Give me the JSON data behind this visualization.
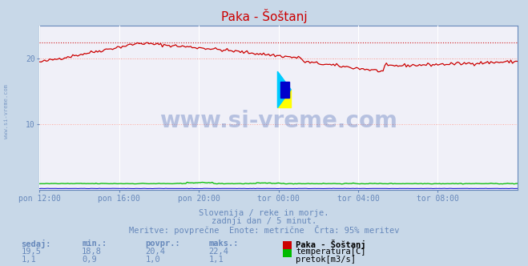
{
  "title": "Paka - Šoštanj",
  "bg_color": "#c8d8e8",
  "plot_bg_color": "#f0f0f8",
  "grid_color": "#ffffff",
  "x_labels": [
    "pon 12:00",
    "pon 16:00",
    "pon 20:00",
    "tor 00:00",
    "tor 04:00",
    "tor 08:00"
  ],
  "x_ticks_norm": [
    0.0,
    0.1667,
    0.3333,
    0.5,
    0.6667,
    0.8333
  ],
  "y_ticks": [
    10,
    20
  ],
  "y_min": 0,
  "y_max": 25,
  "temp_color": "#cc0000",
  "flow_color": "#00bb00",
  "height_color": "#0000cc",
  "temp_max_dotted": 22.4,
  "temp_mid_dotted": 20.0,
  "temp_low_dotted": 10.0,
  "subtitle1": "Slovenija / reke in morje.",
  "subtitle2": "zadnji dan / 5 minut.",
  "subtitle3": "Meritve: povprečne  Enote: metrične  Črta: 95% meritev",
  "legend_title": "Paka - Šoštanj",
  "stats_headers": [
    "sedaj:",
    "min.:",
    "povpr.:",
    "maks.:"
  ],
  "temp_stats": [
    "19,5",
    "18,8",
    "20,4",
    "22,4"
  ],
  "flow_stats": [
    "1,1",
    "0,9",
    "1,0",
    "1,1"
  ],
  "temp_label": "temperatura[C]",
  "flow_label": "pretok[m3/s]",
  "watermark": "www.si-vreme.com",
  "left_label": "www.si-vreme.com",
  "tick_color": "#6688bb",
  "text_color": "#6688bb",
  "title_color": "#cc0000"
}
